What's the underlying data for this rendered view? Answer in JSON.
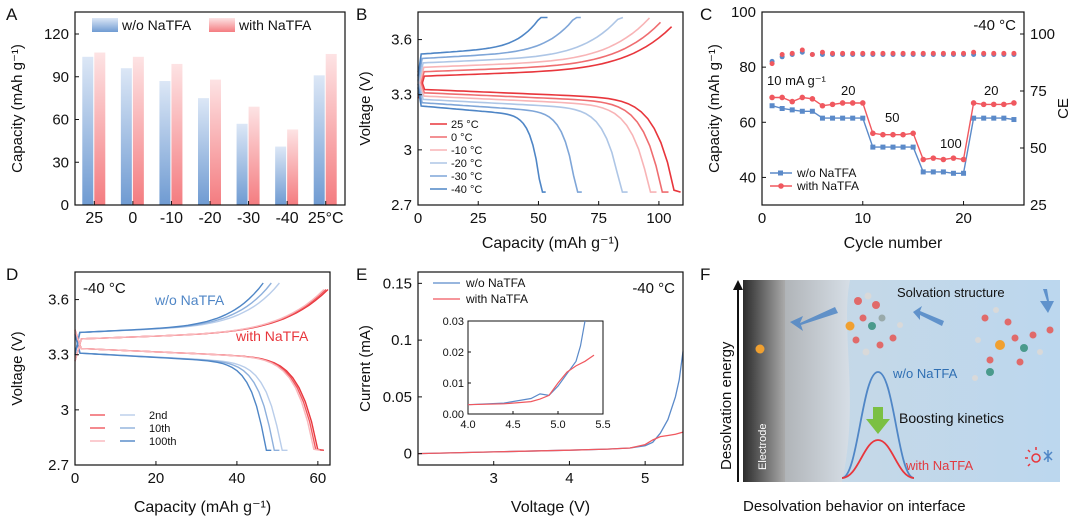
{
  "colors": {
    "blue": "#5b8ac9",
    "red": "#f0585f",
    "blue_light": "#b9cdea",
    "red_light": "#f9b7bb",
    "axis": "#111111"
  },
  "panel_letters": [
    "A",
    "B",
    "C",
    "D",
    "E",
    "F"
  ],
  "chart_data": [
    {
      "panel": "A",
      "type": "bar",
      "ylabel": "Capacity (mAh g⁻¹)",
      "categories": [
        "25",
        "0",
        "-10",
        "-20",
        "-30",
        "-40",
        "25°C"
      ],
      "ylim": [
        0,
        120
      ],
      "yticks": [
        0,
        30,
        60,
        90,
        120
      ],
      "legend_position": "top",
      "series": [
        {
          "name": "w/o NaTFA",
          "color": "#5b8ac9",
          "values": [
            104,
            96,
            87,
            75,
            57,
            41,
            91
          ]
        },
        {
          "name": "with NaTFA",
          "color": "#f0585f",
          "values": [
            107,
            104,
            99,
            88,
            69,
            53,
            106
          ]
        }
      ]
    },
    {
      "panel": "B",
      "type": "line",
      "xlabel": "Capacity (mAh g⁻¹)",
      "ylabel": "Voltage (V)",
      "xlim": [
        0,
        110
      ],
      "ylim": [
        2.7,
        3.75
      ],
      "xticks": [
        0,
        25,
        50,
        75,
        100
      ],
      "yticks": [
        2.7,
        3.0,
        3.3,
        3.6
      ],
      "legend_position": "bottom-left",
      "series": [
        {
          "name": "25 °C",
          "color": "#e8363c",
          "capacity": 109
        },
        {
          "name": "0 °C",
          "color": "#ef6d70",
          "capacity": 104
        },
        {
          "name": "-10 °C",
          "color": "#f8b4b6",
          "capacity": 99
        },
        {
          "name": "-20 °C",
          "color": "#aec6e6",
          "capacity": 87
        },
        {
          "name": "-30 °C",
          "color": "#7fa6d8",
          "capacity": 68
        },
        {
          "name": "-40 °C",
          "color": "#4f86c6",
          "capacity": 53
        }
      ]
    },
    {
      "panel": "C",
      "type": "scatter",
      "xlabel": "Cycle number",
      "ylabel": "Capacity (mAh g⁻¹)",
      "y2label": "CE",
      "annotation": "-40 °C",
      "xlim": [
        0,
        26
      ],
      "ylim": [
        30,
        100
      ],
      "y2lim": [
        25,
        100
      ],
      "xticks": [
        0,
        10,
        20
      ],
      "yticks": [
        40,
        60,
        80,
        100
      ],
      "y2ticks": [
        25,
        50,
        75,
        100
      ],
      "rate_labels": [
        "10 mA g⁻¹",
        "20",
        "50",
        "100",
        "20"
      ],
      "legend_position": "bottom-left",
      "series": [
        {
          "name": "w/o NaTFA",
          "color": "#5b8ac9",
          "marker": "square",
          "x": [
            1,
            2,
            3,
            4,
            5,
            6,
            7,
            8,
            9,
            10,
            11,
            12,
            13,
            14,
            15,
            16,
            17,
            18,
            19,
            20,
            21,
            22,
            23,
            24,
            25
          ],
          "capacity": [
            66,
            65,
            64.5,
            64,
            64,
            61.5,
            61.5,
            61.5,
            61.5,
            61.5,
            51,
            51,
            51,
            51,
            51,
            42,
            42,
            42,
            41.5,
            41.5,
            61.5,
            61.5,
            61.5,
            61.5,
            61
          ],
          "ce": [
            88,
            90,
            91,
            92,
            91,
            91,
            91,
            91,
            91,
            91,
            91,
            91,
            91,
            91,
            91,
            91,
            91,
            91,
            91,
            91,
            91,
            91,
            91,
            91,
            91
          ]
        },
        {
          "name": "with NaTFA",
          "color": "#f0585f",
          "marker": "circle",
          "x": [
            1,
            2,
            3,
            4,
            5,
            6,
            7,
            8,
            9,
            10,
            11,
            12,
            13,
            14,
            15,
            16,
            17,
            18,
            19,
            20,
            21,
            22,
            23,
            24,
            25
          ],
          "capacity": [
            69,
            69,
            67.5,
            69,
            68.5,
            66,
            66.5,
            67,
            67,
            67,
            56,
            55.5,
            55.5,
            55.5,
            56,
            46.5,
            47,
            46.5,
            47,
            46.5,
            67,
            66.5,
            66.5,
            66.5,
            67
          ],
          "ce": [
            87,
            91,
            91.5,
            93,
            91,
            92,
            91.5,
            91.5,
            91.5,
            91.5,
            91.5,
            91.5,
            91.5,
            91.5,
            91.5,
            91.5,
            91.5,
            91.5,
            91.5,
            91.5,
            92,
            91.5,
            91.5,
            91.5,
            91.5
          ]
        }
      ]
    },
    {
      "panel": "D",
      "type": "line",
      "xlabel": "Capacity (mAh g⁻¹)",
      "ylabel": "Voltage (V)",
      "annotation": "-40 °C",
      "xlim": [
        0,
        63
      ],
      "ylim": [
        2.7,
        3.75
      ],
      "xticks": [
        0,
        20,
        40,
        60
      ],
      "yticks": [
        2.7,
        3.0,
        3.3,
        3.6
      ],
      "series_labels": [
        "w/o NaTFA",
        "with NaTFA"
      ],
      "legend_position": "bottom-left",
      "legend": [
        {
          "name": "2nd",
          "red": "#f0585f",
          "blue": "#b9cdea"
        },
        {
          "name": "10th",
          "red": "#f0585f",
          "blue": "#8eb0dc"
        },
        {
          "name": "100th",
          "red": "#f9b7bb",
          "blue": "#4f86c6"
        }
      ],
      "series": [
        {
          "group": "w/o NaTFA",
          "cycle": "2nd",
          "capacity": 52.5,
          "color": "#b9cdea"
        },
        {
          "group": "w/o NaTFA",
          "cycle": "10th",
          "capacity": 50.5,
          "color": "#8eb0dc"
        },
        {
          "group": "w/o NaTFA",
          "cycle": "100th",
          "capacity": 48.5,
          "color": "#4f86c6"
        },
        {
          "group": "with NaTFA",
          "cycle": "2nd",
          "capacity": 61.5,
          "color": "#e8363c"
        },
        {
          "group": "with NaTFA",
          "cycle": "10th",
          "capacity": 61,
          "color": "#f0585f"
        },
        {
          "group": "with NaTFA",
          "cycle": "100th",
          "capacity": 60.5,
          "color": "#f9b7bb"
        }
      ]
    },
    {
      "panel": "E",
      "type": "line",
      "xlabel": "Voltage (V)",
      "ylabel": "Current (mA)",
      "annotation": "-40 °C",
      "xlim": [
        2.0,
        5.5
      ],
      "ylim": [
        -0.01,
        0.16
      ],
      "xticks": [
        3.0,
        4.0,
        5.0
      ],
      "yticks": [
        0.0,
        0.05,
        0.1,
        0.15
      ],
      "legend_position": "top-left",
      "series": [
        {
          "name": "w/o NaTFA",
          "color": "#5b8ac9",
          "x": [
            2.0,
            3.0,
            4.0,
            4.5,
            4.8,
            5.0,
            5.1,
            5.2,
            5.3,
            5.4,
            5.45,
            5.5
          ],
          "y": [
            0.0,
            0.0015,
            0.003,
            0.004,
            0.005,
            0.007,
            0.01,
            0.018,
            0.03,
            0.05,
            0.065,
            0.09
          ]
        },
        {
          "name": "with NaTFA",
          "color": "#f0585f",
          "x": [
            2.0,
            3.0,
            4.0,
            4.5,
            4.8,
            5.0,
            5.1,
            5.2,
            5.3,
            5.4,
            5.5
          ],
          "y": [
            0.0,
            0.0015,
            0.003,
            0.004,
            0.005,
            0.008,
            0.012,
            0.015,
            0.016,
            0.017,
            0.019
          ]
        }
      ],
      "inset": {
        "xlim": [
          4.0,
          5.5
        ],
        "ylim": [
          0.0,
          0.03
        ],
        "xticks": [
          4.0,
          4.5,
          5.0,
          5.5
        ],
        "yticks": [
          0.0,
          0.01,
          0.02,
          0.03
        ],
        "series": [
          {
            "name": "w/o NaTFA",
            "x": [
              4.0,
              4.4,
              4.7,
              4.8,
              4.9,
              5.0,
              5.1,
              5.2,
              5.25,
              5.3
            ],
            "y": [
              0.003,
              0.0035,
              0.005,
              0.0065,
              0.006,
              0.009,
              0.013,
              0.017,
              0.022,
              0.03
            ]
          },
          {
            "name": "with NaTFA",
            "x": [
              4.0,
              4.4,
              4.7,
              4.8,
              4.9,
              5.0,
              5.1,
              5.2,
              5.3,
              5.4
            ],
            "y": [
              0.003,
              0.0033,
              0.004,
              0.0048,
              0.006,
              0.01,
              0.0135,
              0.0155,
              0.017,
              0.019
            ]
          }
        ]
      }
    }
  ],
  "panel_f": {
    "ylabel": "Desolvation energy",
    "electrode_label": "Electrode",
    "solvation_label": "Solvation structure",
    "wo_label": "w/o NaTFA",
    "with_label": "with NaTFA",
    "kinetics_label": "Boosting kinetics",
    "caption": "Desolvation behavior on interface"
  }
}
